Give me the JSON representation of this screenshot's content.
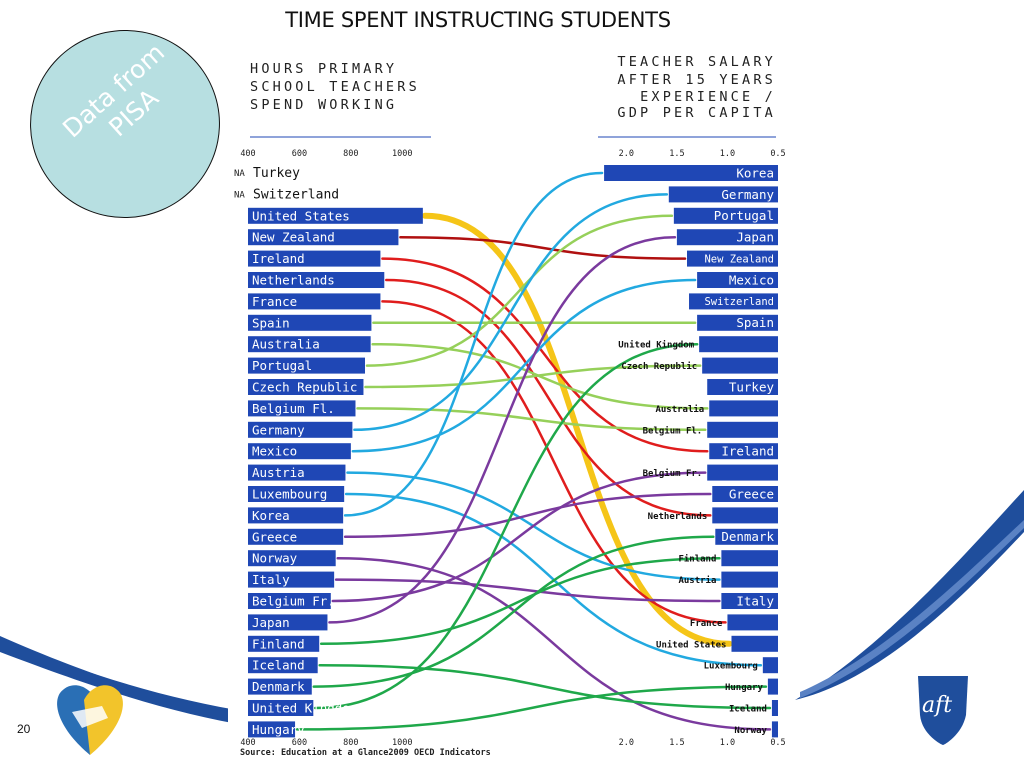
{
  "slide": {
    "title": "TIME SPENT INSTRUCTING STUDENTS",
    "badge_text": "Data from PISA",
    "page_number": "20",
    "colors": {
      "wave": "#1f4e9c",
      "gold": "#f2c42b",
      "badge": "#b7dfe1",
      "bar": "#1f47b5"
    }
  },
  "chart_data": {
    "type": "slope",
    "left_panel": {
      "title": [
        "HOURS PRIMARY",
        "SCHOOL TEACHERS",
        "SPEND WORKING"
      ],
      "ticks": [
        "400",
        "600",
        "800",
        "1000"
      ],
      "xlim": [
        400,
        1100
      ],
      "na_label": "NA",
      "rows": [
        {
          "country": "Turkey",
          "hours": null
        },
        {
          "country": "Switzerland",
          "hours": null
        },
        {
          "country": "United States",
          "hours": 1080
        },
        {
          "country": "New Zealand",
          "hours": 985
        },
        {
          "country": "Ireland",
          "hours": 915
        },
        {
          "country": "Netherlands",
          "hours": 930
        },
        {
          "country": "France",
          "hours": 915
        },
        {
          "country": "Spain",
          "hours": 880
        },
        {
          "country": "Australia",
          "hours": 877
        },
        {
          "country": "Portugal",
          "hours": 855
        },
        {
          "country": "Czech Republic",
          "hours": 849
        },
        {
          "country": "Belgium Fl.",
          "hours": 818
        },
        {
          "country": "Germany",
          "hours": 806
        },
        {
          "country": "Mexico",
          "hours": 800
        },
        {
          "country": "Austria",
          "hours": 779
        },
        {
          "country": "Luxembourg",
          "hours": 774
        },
        {
          "country": "Korea",
          "hours": 770
        },
        {
          "country": "Greece",
          "hours": 770
        },
        {
          "country": "Norway",
          "hours": 741
        },
        {
          "country": "Italy",
          "hours": 735
        },
        {
          "country": "Belgium Fr.",
          "hours": 722
        },
        {
          "country": "Japan",
          "hours": 709
        },
        {
          "country": "Finland",
          "hours": 677
        },
        {
          "country": "Iceland",
          "hours": 671
        },
        {
          "country": "Denmark",
          "hours": 648
        },
        {
          "country": "United Kingdom",
          "hours": 654
        },
        {
          "country": "Hungary",
          "hours": 583
        }
      ]
    },
    "right_panel": {
      "title": [
        "TEACHER SALARY",
        "AFTER 15 YEARS",
        "EXPERIENCE /",
        "GDP PER CAPITA"
      ],
      "ticks": [
        "2.0",
        "1.5",
        "1.0",
        "0.5"
      ],
      "xlim": [
        0.5,
        2.3
      ],
      "rows": [
        {
          "country": "Korea",
          "ratio": 2.22
        },
        {
          "country": "Germany",
          "ratio": 1.58
        },
        {
          "country": "Portugal",
          "ratio": 1.53
        },
        {
          "country": "Japan",
          "ratio": 1.5
        },
        {
          "country": "New Zealand",
          "ratio": 1.4
        },
        {
          "country": "Mexico",
          "ratio": 1.3
        },
        {
          "country": "Switzerland",
          "ratio": 1.38
        },
        {
          "country": "Spain",
          "ratio": 1.3
        },
        {
          "country": "United Kingdom",
          "ratio": 1.28
        },
        {
          "country": "Czech Republic",
          "ratio": 1.25
        },
        {
          "country": "Turkey",
          "ratio": 1.2
        },
        {
          "country": "Australia",
          "ratio": 1.18
        },
        {
          "country": "Belgium Fl.",
          "ratio": 1.2
        },
        {
          "country": "Ireland",
          "ratio": 1.18
        },
        {
          "country": "Belgium Fr.",
          "ratio": 1.2
        },
        {
          "country": "Greece",
          "ratio": 1.15
        },
        {
          "country": "Netherlands",
          "ratio": 1.15
        },
        {
          "country": "Denmark",
          "ratio": 1.12
        },
        {
          "country": "Finland",
          "ratio": 1.06
        },
        {
          "country": "Austria",
          "ratio": 1.06
        },
        {
          "country": "Italy",
          "ratio": 1.06
        },
        {
          "country": "France",
          "ratio": 1.0
        },
        {
          "country": "United States",
          "ratio": 0.96
        },
        {
          "country": "Luxembourg",
          "ratio": 0.65
        },
        {
          "country": "Hungary",
          "ratio": 0.6
        },
        {
          "country": "Iceland",
          "ratio": 0.56
        },
        {
          "country": "Norway",
          "ratio": 0.56
        }
      ]
    },
    "connections": [
      {
        "country": "United States",
        "color": "#f5c518"
      },
      {
        "country": "New Zealand",
        "color": "#b01010"
      },
      {
        "country": "Ireland",
        "color": "#e01d1d"
      },
      {
        "country": "Netherlands",
        "color": "#e01d1d"
      },
      {
        "country": "France",
        "color": "#e01d1d"
      },
      {
        "country": "Spain",
        "color": "#96d05a"
      },
      {
        "country": "Australia",
        "color": "#96d05a"
      },
      {
        "country": "Portugal",
        "color": "#96d05a"
      },
      {
        "country": "Czech Republic",
        "color": "#96d05a"
      },
      {
        "country": "Belgium Fl.",
        "color": "#96d05a"
      },
      {
        "country": "Germany",
        "color": "#22a9e0"
      },
      {
        "country": "Mexico",
        "color": "#22a9e0"
      },
      {
        "country": "Austria",
        "color": "#22a9e0"
      },
      {
        "country": "Luxembourg",
        "color": "#22a9e0"
      },
      {
        "country": "Korea",
        "color": "#22a9e0"
      },
      {
        "country": "Greece",
        "color": "#7a3a9e"
      },
      {
        "country": "Norway",
        "color": "#7a3a9e"
      },
      {
        "country": "Italy",
        "color": "#7a3a9e"
      },
      {
        "country": "Belgium Fr.",
        "color": "#7a3a9e"
      },
      {
        "country": "Japan",
        "color": "#7a3a9e"
      },
      {
        "country": "Finland",
        "color": "#1fa84a"
      },
      {
        "country": "Iceland",
        "color": "#1fa84a"
      },
      {
        "country": "Denmark",
        "color": "#1fa84a"
      },
      {
        "country": "United Kingdom",
        "color": "#1fa84a"
      },
      {
        "country": "Hungary",
        "color": "#1fa84a"
      }
    ],
    "source": "Source: Education at a Glance2009 OECD Indicators"
  }
}
